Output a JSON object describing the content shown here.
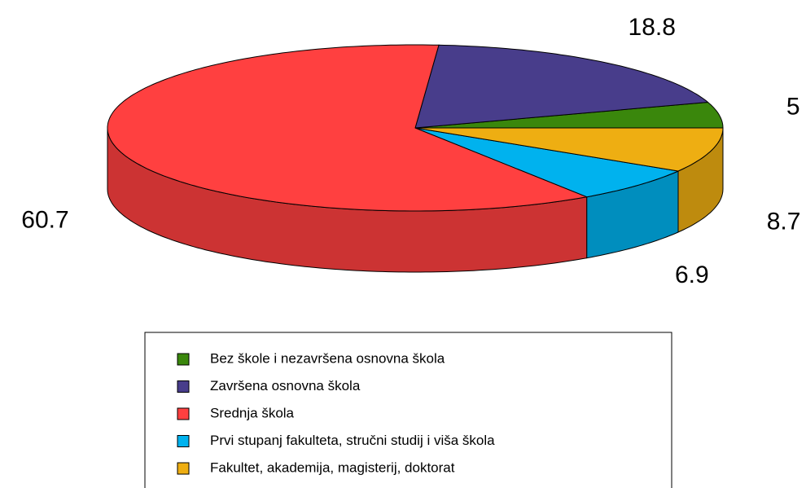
{
  "chart_data": {
    "type": "pie",
    "categories": [
      "Bez škole i nezavršena osnovna škola",
      "Završena osnovna škola",
      "Srednja škola",
      "Prvi stupanj fakulteta, stručni studij i viša škola",
      "Fakultet, akademija, magisterij, doktorat"
    ],
    "values": [
      5,
      18.8,
      60.7,
      6.9,
      8.7
    ],
    "colors": [
      "#3a870c",
      "#483d8b",
      "#ff4040",
      "#00b2ee",
      "#eeae12"
    ],
    "legend": "bottom"
  }
}
